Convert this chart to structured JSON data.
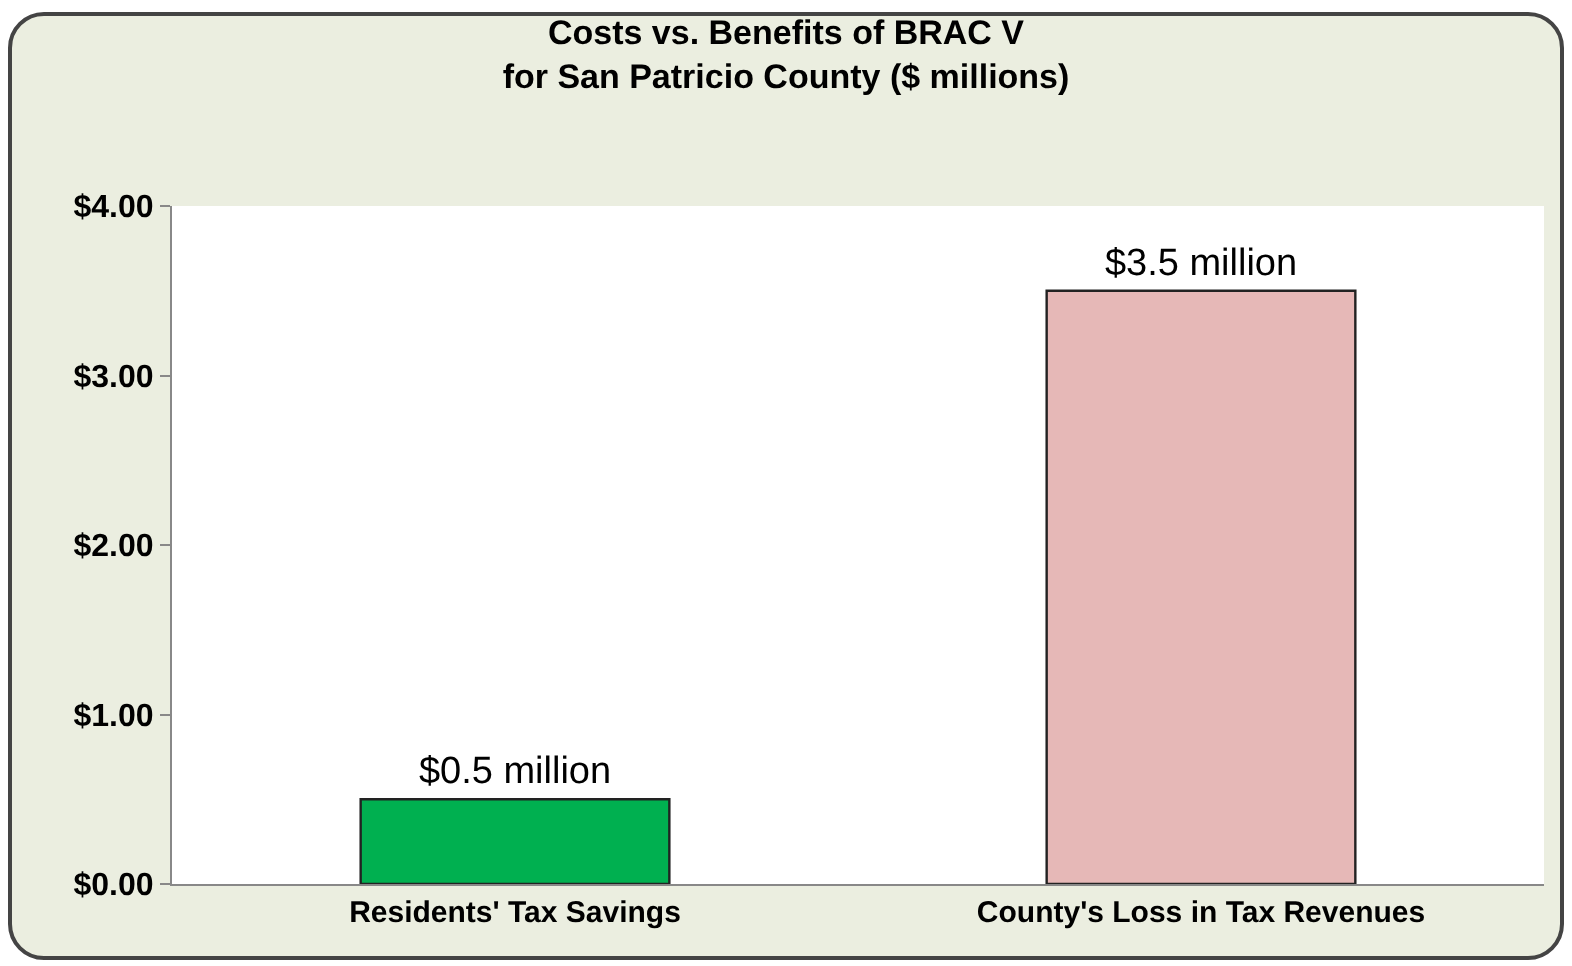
{
  "chart_data": {
    "type": "bar",
    "title": "Costs vs. Benefits of BRAC V\nfor San Patricio County ($ millions)",
    "categories": [
      "Residents' Tax Savings",
      "County's Loss in Tax Revenues"
    ],
    "values": [
      0.5,
      3.5
    ],
    "colors": [
      "#00b050",
      "#e6b8b7"
    ],
    "value_labels": [
      "$0.5 million",
      "$3.5 million"
    ],
    "ylim": [
      0,
      4
    ],
    "yticks": [
      {
        "value": 0,
        "label": "$0.00"
      },
      {
        "value": 1,
        "label": "$1.00"
      },
      {
        "value": 2,
        "label": "$2.00"
      },
      {
        "value": 3,
        "label": "$3.00"
      },
      {
        "value": 4,
        "label": "$4.00"
      }
    ],
    "grid": false
  }
}
